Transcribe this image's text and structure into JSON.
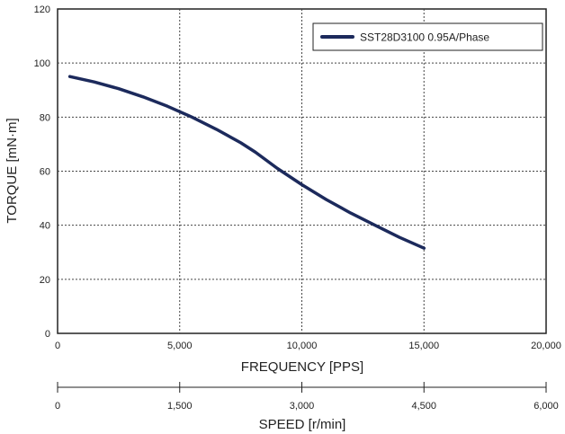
{
  "chart_data": {
    "type": "line",
    "xlabel": "FREQUENCY [PPS]",
    "ylabel": "TORQUE [mN·m]",
    "xlim": [
      0,
      20000
    ],
    "ylim": [
      0,
      120
    ],
    "x_ticks": [
      "0",
      "5,000",
      "10,000",
      "15,000",
      "20,000"
    ],
    "y_ticks": [
      "0",
      "20",
      "40",
      "60",
      "80",
      "100",
      "120"
    ],
    "secondary_axis": {
      "label": "SPEED [r/min]",
      "lim": [
        0,
        6000
      ],
      "ticks": [
        "0",
        "1,500",
        "3,000",
        "4,500",
        "6,000"
      ]
    },
    "grid": true,
    "legend_position": "top-right",
    "series": [
      {
        "name": "SST28D3100  0.95A/Phase",
        "color": "#1c2a5c",
        "x": [
          500,
          1500,
          2500,
          3500,
          4500,
          5500,
          6500,
          7500,
          8100,
          9000,
          10000,
          11000,
          12000,
          13000,
          14000,
          15000
        ],
        "y": [
          95,
          93,
          90.5,
          87.5,
          84,
          80,
          75.5,
          70.5,
          67,
          61,
          55,
          49.5,
          44.5,
          40,
          35.5,
          31.5
        ]
      }
    ]
  }
}
